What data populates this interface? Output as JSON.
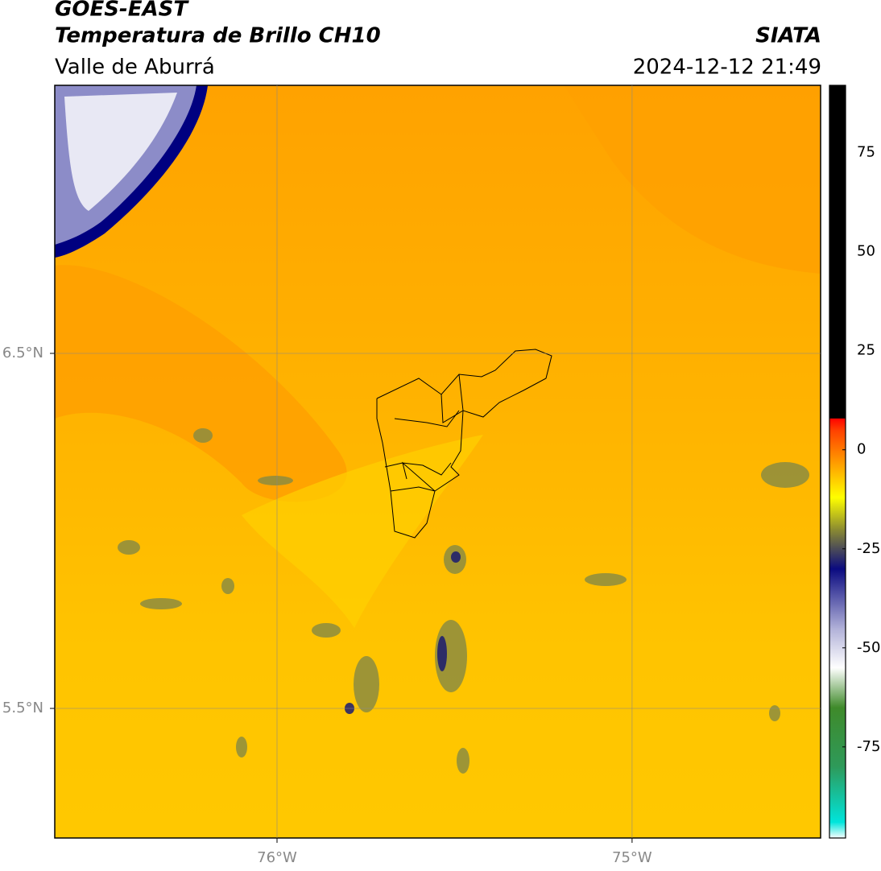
{
  "header": {
    "source": "GOES-EAST",
    "product": "Temperatura de Brillo CH10",
    "region": "Valle de Aburrá",
    "agency": "SIATA",
    "timestamp": "2024-12-12 21:49"
  },
  "map": {
    "xlim": [
      -76.626,
      -74.469
    ],
    "ylim": [
      5.135,
      7.255
    ],
    "xticks": [
      {
        "value": -76,
        "label": "76°W"
      },
      {
        "value": -75,
        "label": "75°W"
      }
    ],
    "yticks": [
      {
        "value": 6.5,
        "label": "6.5°N"
      },
      {
        "value": 5.5,
        "label": "5.5°N"
      }
    ],
    "grid": true
  },
  "colorbar": {
    "lim": [
      -98,
      92
    ],
    "ticks": [
      75,
      50,
      25,
      0,
      -25,
      -50,
      -75
    ],
    "colormap": [
      {
        "value": -98,
        "color": "#ffffff"
      },
      {
        "value": -94,
        "color": "#00e5dc"
      },
      {
        "value": -80,
        "color": "#2e9a5a"
      },
      {
        "value": -65,
        "color": "#3f8a2a"
      },
      {
        "value": -55,
        "color": "#ffffff"
      },
      {
        "value": -45,
        "color": "#b0b0d8"
      },
      {
        "value": -30,
        "color": "#0a0a80"
      },
      {
        "value": -20,
        "color": "#8c8c30"
      },
      {
        "value": -12,
        "color": "#ffff00"
      },
      {
        "value": -5,
        "color": "#ffb000"
      },
      {
        "value": 5,
        "color": "#ff4000"
      },
      {
        "value": 8,
        "color": "#ff0000"
      },
      {
        "value": 8.01,
        "color": "#000000"
      },
      {
        "value": 92,
        "color": "#000000"
      }
    ]
  }
}
